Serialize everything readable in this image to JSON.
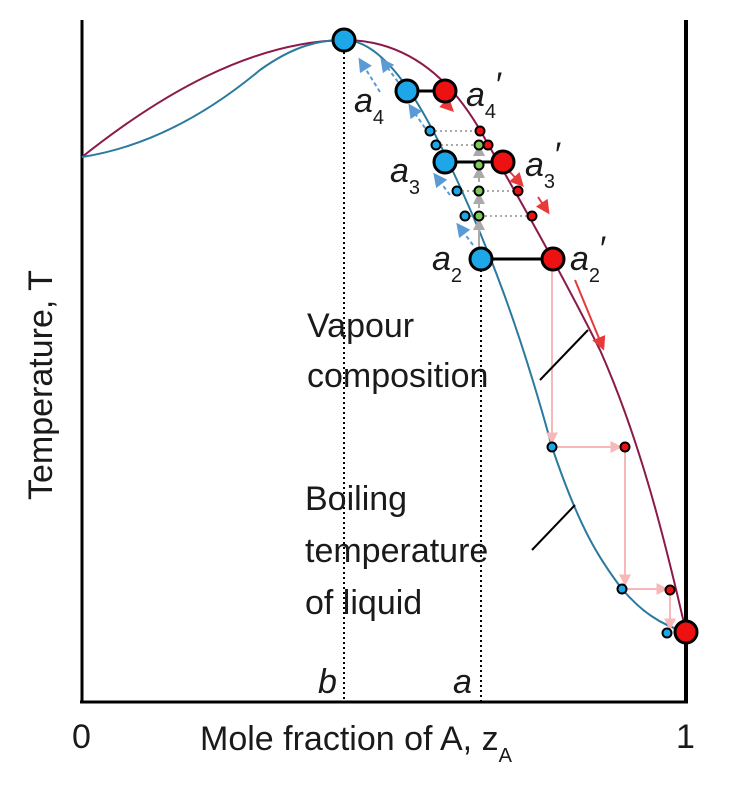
{
  "axes": {
    "y_label": "Temperature, T",
    "x_label": "Mole fraction of A, z",
    "x_label_sub": "A",
    "x_tick_left": "0",
    "x_tick_right": "1",
    "mark_b": "b",
    "mark_a": "a"
  },
  "curves": {
    "vapour_label_line1": "Vapour",
    "vapour_label_line2": "composition",
    "liquid_label_line1": "Boiling",
    "liquid_label_line2": "temperature",
    "liquid_label_line3": "of liquid"
  },
  "points": {
    "a2": "a",
    "a2_sub": "2",
    "a2p": "a",
    "a2p_sub": "2",
    "a2p_prime": "′",
    "a3": "a",
    "a3_sub": "3",
    "a3p": "a",
    "a3p_sub": "3",
    "a3p_prime": "′",
    "a4": "a",
    "a4_sub": "4",
    "a4p": "a",
    "a4p_sub": "4",
    "a4p_prime": "′"
  },
  "colors": {
    "liquid_curve": "#2a7aa0",
    "vapour_curve": "#8b1a4a",
    "liquid_point": "#1ea7e8",
    "vapour_point": "#ee1111",
    "green_point": "#7ec85a",
    "red_arrow": "#e83a3a",
    "blue_arrow": "#5b9bd5",
    "pink_path": "#f6b8b8",
    "grey_arrow": "#aaaaaa"
  }
}
